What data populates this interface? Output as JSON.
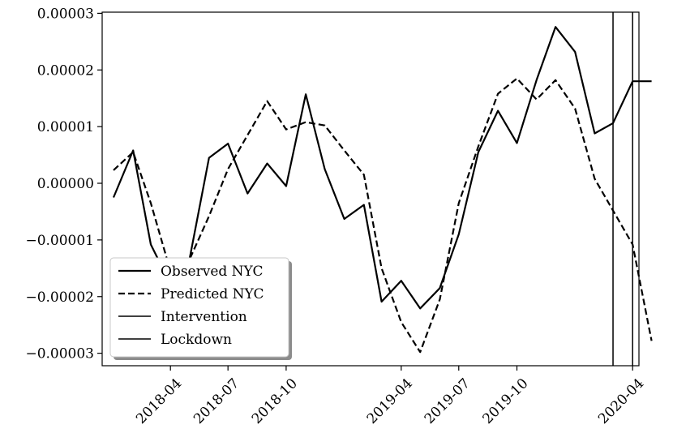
{
  "chart_data": {
    "type": "line",
    "xlim": [
      "2017-12-14",
      "2020-04-11"
    ],
    "ylim": [
      -3.22e-05,
      3.02e-05
    ],
    "x_ticks": [
      "2018-04-01",
      "2018-07-01",
      "2018-10-01",
      "2019-04-01",
      "2019-07-01",
      "2019-10-01",
      "2020-04-01"
    ],
    "x_tick_labels": [
      "2018-04",
      "2018-07",
      "2018-10",
      "2019-04",
      "2019-07",
      "2019-10",
      "2020-04"
    ],
    "y_ticks": [
      -3e-05,
      -2e-05,
      -1e-05,
      0,
      1e-05,
      2e-05,
      3e-05
    ],
    "y_tick_labels": [
      "−0.00003",
      "−0.00002",
      "−0.00001",
      "0.00000",
      "0.00001",
      "0.00002",
      "0.00003"
    ],
    "grid": false,
    "legend_position": "lower-left",
    "series": [
      {
        "name": "Observed NYC",
        "style": "solid",
        "color": "#000000",
        "points": [
          [
            "2018-01-01",
            -2.5e-06
          ],
          [
            "2018-02-01",
            5.8e-06
          ],
          [
            "2018-03-01",
            -1.08e-05
          ],
          [
            "2018-04-01",
            -1.78e-05
          ],
          [
            "2018-05-01",
            -1.35e-05
          ],
          [
            "2018-06-01",
            4.5e-06
          ],
          [
            "2018-07-01",
            7e-06
          ],
          [
            "2018-08-01",
            -1.8e-06
          ],
          [
            "2018-09-01",
            3.5e-06
          ],
          [
            "2018-10-01",
            -5e-07
          ],
          [
            "2018-11-01",
            1.57e-05
          ],
          [
            "2018-12-01",
            2.5e-06
          ],
          [
            "2019-01-01",
            -6.3e-06
          ],
          [
            "2019-02-01",
            -3.8e-06
          ],
          [
            "2019-03-01",
            -2.09e-05
          ],
          [
            "2019-04-01",
            -1.72e-05
          ],
          [
            "2019-05-01",
            -2.21e-05
          ],
          [
            "2019-06-01",
            -1.85e-05
          ],
          [
            "2019-07-01",
            -9e-06
          ],
          [
            "2019-08-01",
            5.5e-06
          ],
          [
            "2019-09-01",
            1.28e-05
          ],
          [
            "2019-10-01",
            7.1e-06
          ],
          [
            "2019-11-01",
            1.82e-05
          ],
          [
            "2019-12-01",
            2.76e-05
          ],
          [
            "2020-01-01",
            2.32e-05
          ],
          [
            "2020-02-01",
            8.8e-06
          ],
          [
            "2020-03-01",
            1.06e-05
          ],
          [
            "2020-04-01",
            1.8e-05
          ],
          [
            "2020-05-01",
            1.8e-05
          ]
        ]
      },
      {
        "name": "Predicted NYC",
        "style": "dashed",
        "color": "#000000",
        "points": [
          [
            "2018-01-01",
            2.3e-06
          ],
          [
            "2018-02-01",
            5.5e-06
          ],
          [
            "2018-03-01",
            -3.5e-06
          ],
          [
            "2018-04-01",
            -1.55e-05
          ],
          [
            "2018-05-01",
            -1.35e-05
          ],
          [
            "2018-06-01",
            -5.8e-06
          ],
          [
            "2018-07-01",
            2.5e-06
          ],
          [
            "2018-08-01",
            8.5e-06
          ],
          [
            "2018-09-01",
            1.45e-05
          ],
          [
            "2018-10-01",
            9.5e-06
          ],
          [
            "2018-11-01",
            1.08e-05
          ],
          [
            "2018-12-01",
            1.02e-05
          ],
          [
            "2019-01-01",
            5.8e-06
          ],
          [
            "2019-02-01",
            1.5e-06
          ],
          [
            "2019-03-01",
            -1.5e-05
          ],
          [
            "2019-04-01",
            -2.45e-05
          ],
          [
            "2019-05-01",
            -2.98e-05
          ],
          [
            "2019-06-01",
            -2.05e-05
          ],
          [
            "2019-07-01",
            -3.5e-06
          ],
          [
            "2019-08-01",
            6.5e-06
          ],
          [
            "2019-09-01",
            1.58e-05
          ],
          [
            "2019-10-01",
            1.85e-05
          ],
          [
            "2019-11-01",
            1.48e-05
          ],
          [
            "2019-12-01",
            1.82e-05
          ],
          [
            "2020-01-01",
            1.32e-05
          ],
          [
            "2020-02-01",
            8e-07
          ],
          [
            "2020-03-01",
            -4.8e-06
          ],
          [
            "2020-04-01",
            -1.08e-05
          ],
          [
            "2020-05-01",
            -2.78e-05
          ]
        ]
      }
    ],
    "vlines": [
      {
        "name": "Intervention",
        "x": "2020-03-01",
        "color": "#000000"
      },
      {
        "name": "Lockdown",
        "x": "2020-04-01",
        "color": "#000000"
      }
    ],
    "legend": [
      {
        "label": "Observed NYC",
        "style": "solid-bold"
      },
      {
        "label": "Predicted NYC",
        "style": "dashed"
      },
      {
        "label": "Intervention",
        "style": "solid-thin"
      },
      {
        "label": "Lockdown",
        "style": "solid-thin"
      }
    ]
  }
}
